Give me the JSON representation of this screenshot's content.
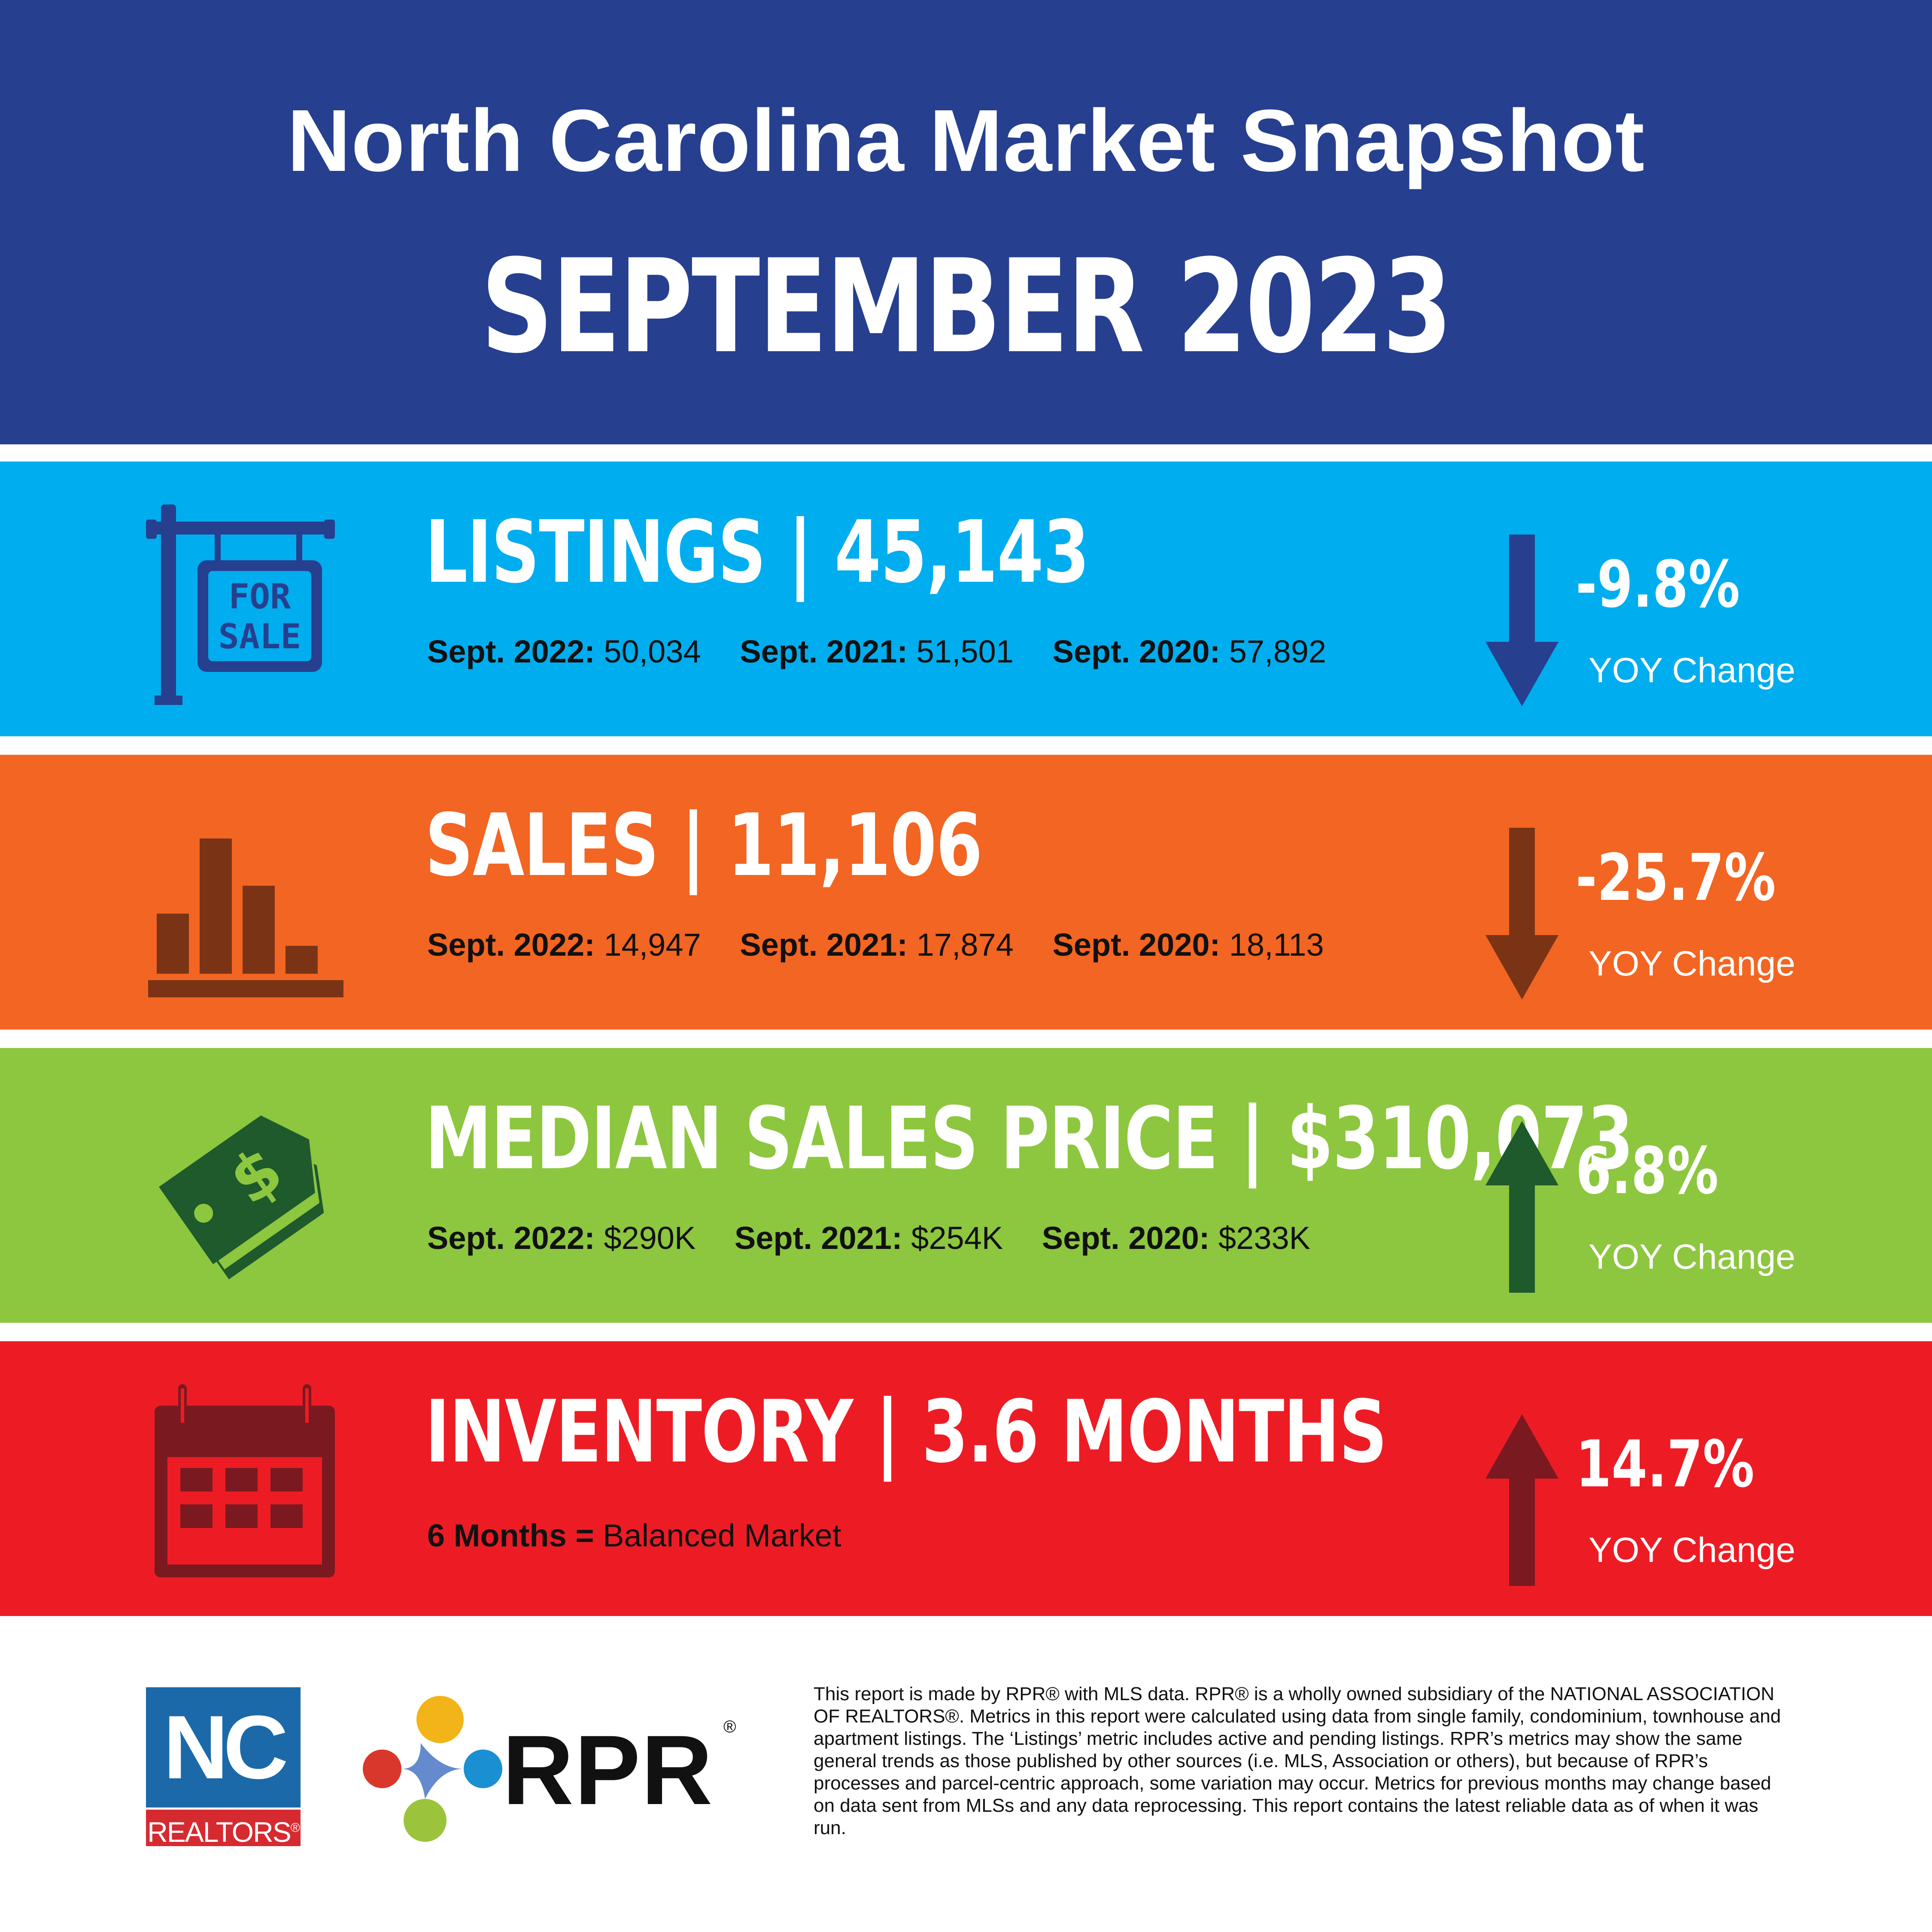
{
  "header": {
    "title": "North Carolina Market Snapshot",
    "subtitle": "SEPTEMBER 2023"
  },
  "listings": {
    "headline": "LISTINGS | 45,143",
    "comparisons": [
      {
        "label": "Sept. 2022:",
        "value": "50,034"
      },
      {
        "label": "Sept. 2021:",
        "value": "51,501"
      },
      {
        "label": "Sept. 2020:",
        "value": "57,892"
      }
    ],
    "change": "-9.8%",
    "change_label": "YOY Change",
    "sign_text_1": "FOR",
    "sign_text_2": "SALE",
    "icon": "for-sale-sign-icon",
    "arrow": "arrow-down-icon",
    "color": "#00adee",
    "icon_color": "#263f8f"
  },
  "sales": {
    "headline": "SALES | 11,106",
    "comparisons": [
      {
        "label": "Sept. 2022:",
        "value": "14,947"
      },
      {
        "label": "Sept. 2021:",
        "value": "17,874"
      },
      {
        "label": "Sept. 2020:",
        "value": "18,113"
      }
    ],
    "change": "-25.7%",
    "change_label": "YOY Change",
    "icon": "bar-chart-icon",
    "arrow": "arrow-down-icon",
    "color": "#f26522",
    "icon_color": "#7a3415"
  },
  "price": {
    "headline": "MEDIAN SALES PRICE | $310,073",
    "comparisons": [
      {
        "label": "Sept. 2022:",
        "value": "$290K"
      },
      {
        "label": "Sept. 2021:",
        "value": "$254K"
      },
      {
        "label": "Sept. 2020:",
        "value": "$233K"
      }
    ],
    "change": "6.8%",
    "change_label": "YOY Change",
    "icon": "price-tag-icon",
    "arrow": "arrow-up-icon",
    "color": "#8dc63f",
    "icon_color": "#1e5a2c"
  },
  "inventory": {
    "headline": "INVENTORY | 3.6 MONTHS",
    "note_bold": "6 Months =",
    "note_rest": "Balanced Market",
    "change": "14.7%",
    "change_label": "YOY Change",
    "icon": "calendar-icon",
    "arrow": "arrow-up-icon",
    "color": "#ed1c24",
    "icon_color": "#7b1920"
  },
  "footer": {
    "disclaimer": "This report is made by RPR® with MLS data. RPR® is a wholly owned subsidiary of the NATIONAL ASSOCIATION OF REALTORS®. Metrics in this report were calculated using data from single family, condominium, townhouse and apartment listings. The ‘Listings’ metric includes active and pending listings. RPR’s metrics may show the same general trends as those published by other sources (i.e. MLS, Association or others), but because of RPR’s processes and parcel-centric approach, some variation may occur. Metrics for previous months may change based on data sent from MLSs and any data reprocessing. This report contains the latest reliable data as of when it was run.",
    "nc_logo_top": "NC",
    "nc_logo_bottom": "REALTORS",
    "nc_logo_reg": "®",
    "rpr_logo": "RPR",
    "rpr_reg": "®"
  }
}
